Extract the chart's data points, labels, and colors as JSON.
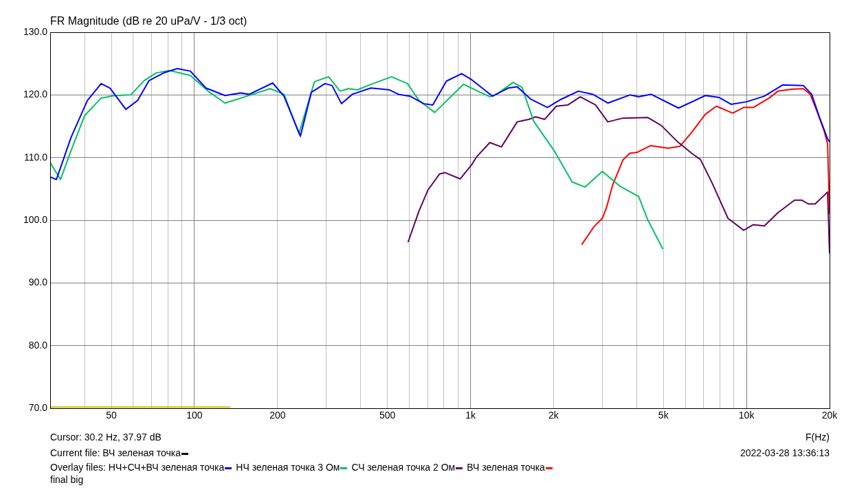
{
  "chart_data": {
    "type": "line",
    "title": "FR Magnitude (dB re 20 uPa/V - 1/3 oct)",
    "xlabel": "F(Hz)",
    "log": "x",
    "grid": true,
    "legend": "bottom",
    "marker": "none",
    "line_style": "solid",
    "xlim": [
      30,
      20000
    ],
    "ylim": [
      70,
      130
    ],
    "xticks": [
      {
        "value": 30,
        "label": null
      },
      {
        "value": 40,
        "label": null
      },
      50,
      {
        "value": 60,
        "label": null
      },
      {
        "value": 70,
        "label": null
      },
      {
        "value": 80,
        "label": null
      },
      {
        "value": 90,
        "label": null
      },
      100,
      200,
      {
        "value": 300,
        "label": null
      },
      {
        "value": 400,
        "label": null
      },
      500,
      {
        "value": 600,
        "label": null
      },
      {
        "value": 700,
        "label": null
      },
      {
        "value": 800,
        "label": null
      },
      {
        "value": 900,
        "label": null
      },
      {
        "value": 1000,
        "label": "1k"
      },
      {
        "value": 2000,
        "label": "2k"
      },
      {
        "value": 3000,
        "label": null
      },
      {
        "value": 4000,
        "label": null
      },
      {
        "value": 5000,
        "label": "5k"
      },
      {
        "value": 6000,
        "label": null
      },
      {
        "value": 7000,
        "label": null
      },
      {
        "value": 8000,
        "label": null
      },
      {
        "value": 9000,
        "label": null
      },
      {
        "value": 10000,
        "label": "10k"
      },
      {
        "value": 20000,
        "label": "20k"
      }
    ],
    "yticks": [
      {
        "value": 70,
        "label": "70.0"
      },
      {
        "value": 80,
        "label": "80.0"
      },
      {
        "value": 90,
        "label": "90.0"
      },
      {
        "value": 100,
        "label": "100.0"
      },
      {
        "value": 110,
        "label": "110.0"
      },
      {
        "value": 120,
        "label": "120.0"
      },
      {
        "value": 130,
        "label": "130.0"
      }
    ],
    "annotations": [
      "Cursor: 30.2 Hz, 37.97 dB",
      "Current file: ВЧ зеленая точка",
      "2022-03-28  13:36:13",
      "Overlay files:",
      "final big"
    ],
    "series": [
      {
        "name": "НЧ+СЧ+ВЧ зеленая точка",
        "color": "#0000ff",
        "x": [
          30,
          31.6,
          35.7,
          40.9,
          45.9,
          49.4,
          56.4,
          62.2,
          68.5,
          78.2,
          86.7,
          96.6,
          110,
          129,
          147,
          158,
          192,
          211,
          242,
          265,
          297,
          315,
          341,
          373,
          436,
          509,
          548,
          604,
          677,
          730,
          818,
          929,
          1012,
          1202,
          1371,
          1477,
          1656,
          1900,
          2130,
          2460,
          2773,
          3145,
          3780,
          4067,
          4510,
          5675,
          7092,
          7943,
          8810,
          10000,
          11610,
          13550,
          16070,
          17220,
          18360,
          19670,
          20000
        ],
        "values": [
          106.9,
          106.5,
          113.2,
          119.1,
          121.8,
          121.1,
          117.7,
          119.1,
          122.3,
          123.6,
          124.2,
          123.8,
          121.1,
          119.9,
          120.3,
          120.1,
          121.9,
          119.8,
          113.4,
          120.4,
          121.8,
          121.5,
          118.6,
          120.1,
          121.1,
          120.8,
          120.1,
          119.8,
          118.6,
          118.4,
          122.2,
          123.4,
          122.4,
          119.8,
          121.1,
          121.3,
          119.3,
          118,
          119.3,
          120.6,
          120.1,
          118.7,
          120,
          119.7,
          120.1,
          117.9,
          119.9,
          119.6,
          118.5,
          118.9,
          119.8,
          121.6,
          121.5,
          120.1,
          116.5,
          113,
          112.5
        ]
      },
      {
        "name": "НЧ зеленая точка 3 Ом",
        "color": "#00c060",
        "x": [
          30,
          32.7,
          35.7,
          40,
          45.9,
          51.4,
          58.7,
          65.8,
          72.6,
          81.3,
          96.6,
          112,
          129,
          155,
          188,
          211,
          239,
          272,
          306,
          337,
          361,
          389,
          443,
          518,
          591,
          651,
          742,
          944,
          1175,
          1244,
          1426,
          1537,
          1694,
          2010,
          2335,
          2603,
          3003,
          3487,
          4067,
          4385,
          4977
        ],
        "values": [
          109.2,
          106.5,
          111.1,
          116.7,
          119.5,
          119.9,
          120,
          122.3,
          123.5,
          123.9,
          123.1,
          120.6,
          118.7,
          119.8,
          121,
          120.1,
          113.8,
          122.1,
          122.9,
          120.6,
          121,
          120.8,
          121.8,
          122.9,
          121.8,
          119.1,
          117.2,
          121.7,
          119.7,
          120.1,
          122,
          121.2,
          115.8,
          111.1,
          106.1,
          105.3,
          107.8,
          105.4,
          103.8,
          100.1,
          95.4
        ]
      },
      {
        "name": "СЧ зеленая точка 2 Ом",
        "color": "#600060",
        "x": [
          594,
          651,
          701,
          773,
          809,
          918,
          1012,
          1047,
          1175,
          1294,
          1477,
          1627,
          1722,
          1857,
          2046,
          2255,
          2500,
          2838,
          3145,
          3565,
          4385,
          4920,
          5636,
          6324,
          6808,
          7516,
          8570,
          9772,
          10590,
          11610,
          13000,
          14930,
          15890,
          16750,
          17740,
          19670,
          20000
        ],
        "values": [
          96.5,
          101.5,
          104.8,
          107.4,
          107.6,
          106.6,
          108.9,
          110,
          112.4,
          111.7,
          115.7,
          116.1,
          116.5,
          116.1,
          118.2,
          118.4,
          119.7,
          118.4,
          115.7,
          116.3,
          116.4,
          115.1,
          112.5,
          110.7,
          109.7,
          105.9,
          100.3,
          98.4,
          99.3,
          99.1,
          101.2,
          103.2,
          103.2,
          102.6,
          102.6,
          104.5,
          94.7
        ]
      },
      {
        "name": "ВЧ зеленая точка",
        "color": "#ff0000",
        "x": [
          2529,
          2805,
          3003,
          3110,
          3273,
          3565,
          3780,
          4000,
          4487,
          5200,
          5741,
          6324,
          7092,
          7780,
          8913,
          9772,
          10590,
          12080,
          13000,
          14590,
          16070,
          17020,
          18030,
          19100,
          19670,
          20000
        ],
        "values": [
          96.1,
          99,
          100.3,
          102,
          105.6,
          109.6,
          110.7,
          110.8,
          111.9,
          111.5,
          111.8,
          114,
          116.9,
          118.2,
          117.1,
          118,
          118,
          119.5,
          120.6,
          120.9,
          121,
          120.1,
          117.3,
          114.3,
          112.2,
          101
        ]
      },
      {
        "color": "#c8c800",
        "x": [
          30,
          135
        ],
        "values": [
          70.2,
          70.2
        ]
      }
    ]
  }
}
